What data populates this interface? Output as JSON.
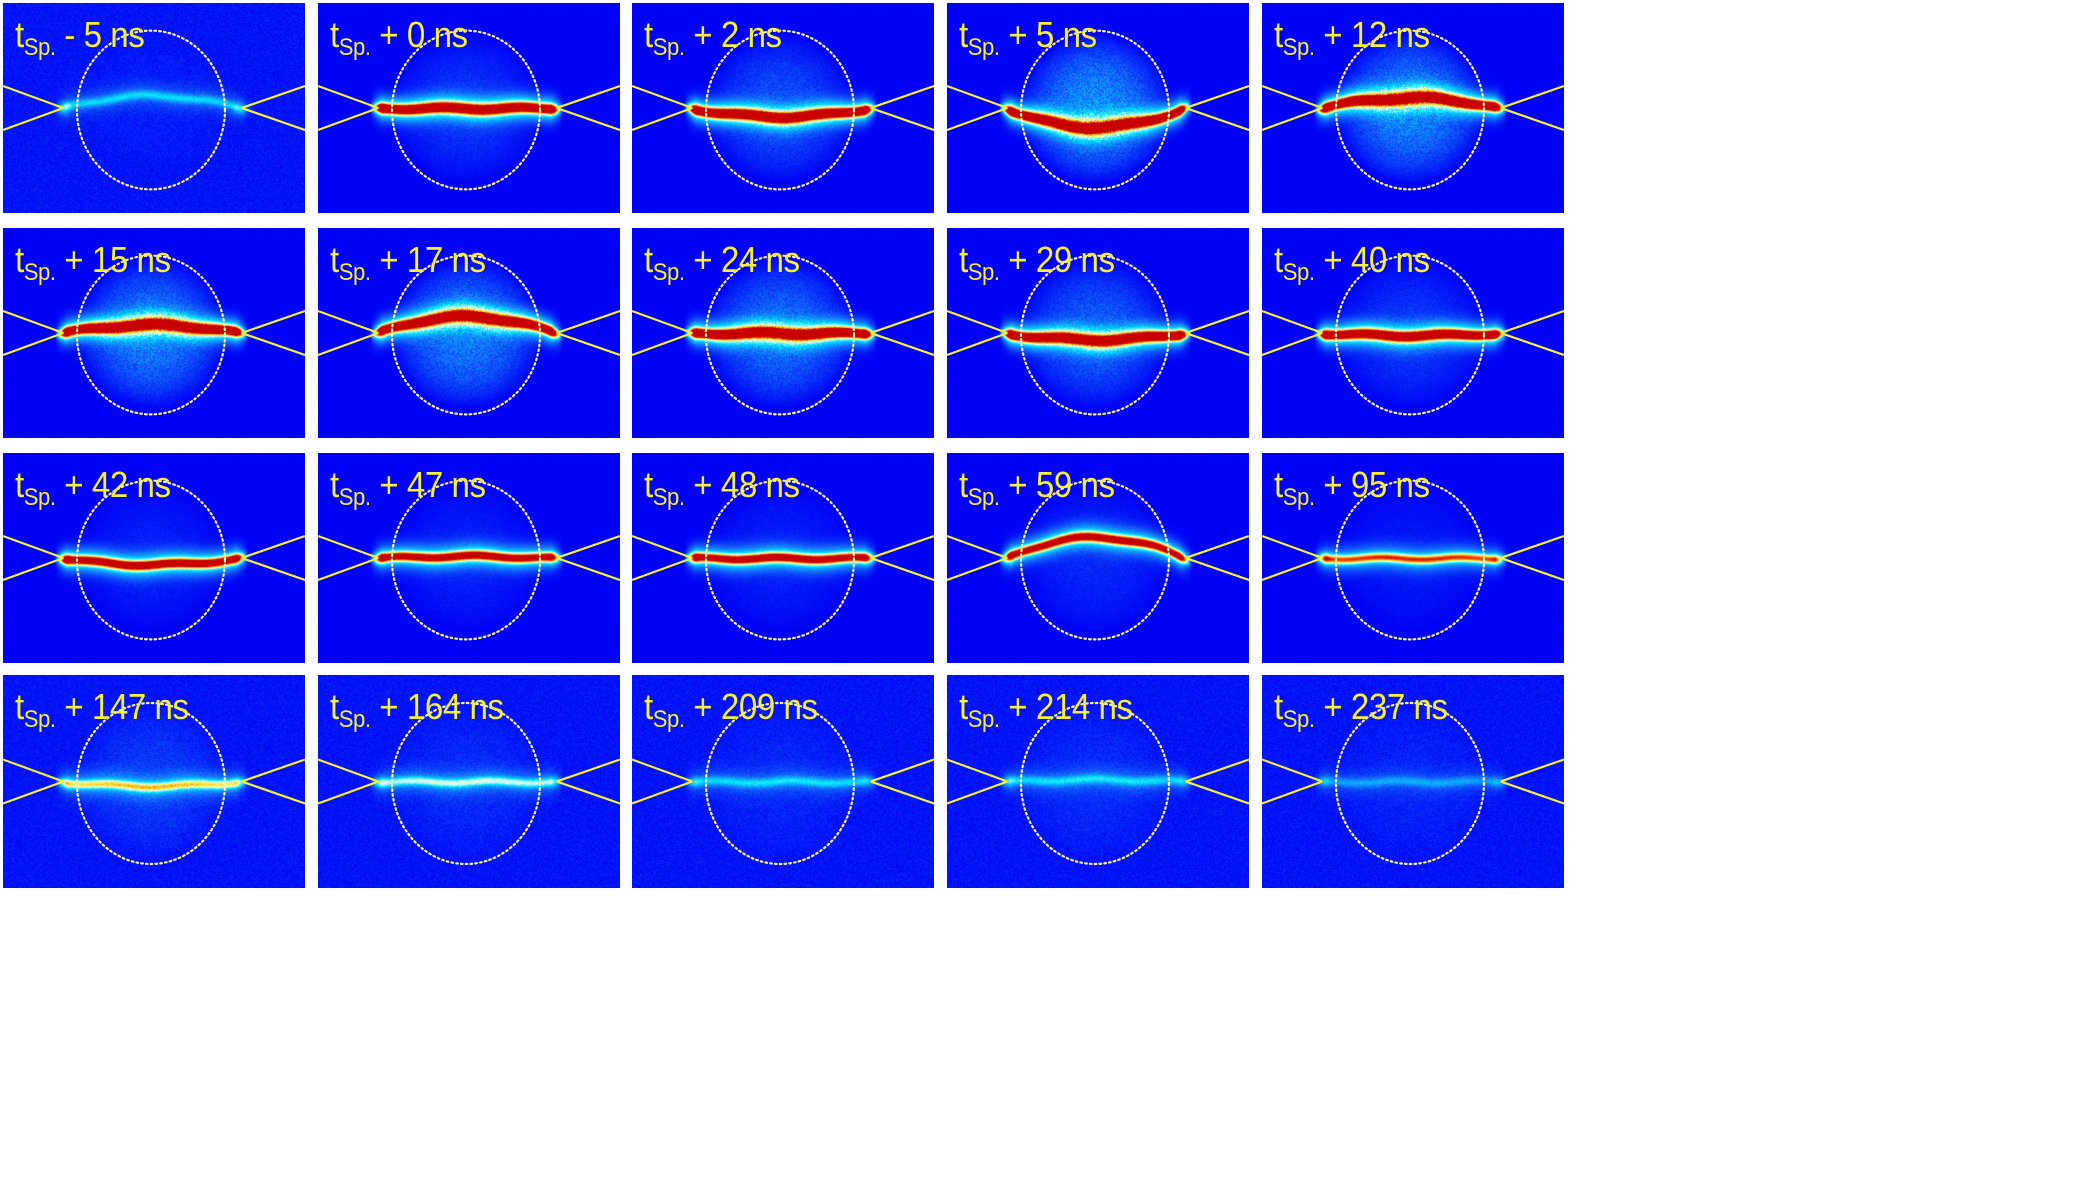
{
  "figure": {
    "background": "#ffffff",
    "panel_color": "#0000f5",
    "label_color": "#f5f03a",
    "overlay_color": "#f5f03a",
    "rows": 4,
    "cols": 5,
    "label_prefix": "t",
    "label_subscript": "Sp.",
    "panels": [
      {
        "label": "- 5 ns",
        "intensity": 0.25,
        "halo": 0.05,
        "curve": -0.12,
        "tips": 0.6
      },
      {
        "label": "+ 0 ns",
        "intensity": 1.0,
        "halo": 0.35,
        "curve": 0.0,
        "tips": 0.4
      },
      {
        "label": "+ 2 ns",
        "intensity": 1.0,
        "halo": 0.5,
        "curve": 0.08,
        "tips": 0.4
      },
      {
        "label": "+ 5 ns",
        "intensity": 1.0,
        "halo": 0.9,
        "curve": 0.18,
        "tips": 0.4
      },
      {
        "label": "+ 12 ns",
        "intensity": 1.0,
        "halo": 0.85,
        "curve": -0.1,
        "tips": 0.4
      },
      {
        "label": "+ 15 ns",
        "intensity": 1.0,
        "halo": 0.8,
        "curve": -0.08,
        "tips": 0.4
      },
      {
        "label": "+ 17 ns",
        "intensity": 1.0,
        "halo": 0.8,
        "curve": -0.16,
        "tips": 0.4
      },
      {
        "label": "+ 24 ns",
        "intensity": 1.0,
        "halo": 0.7,
        "curve": 0.0,
        "tips": 0.4
      },
      {
        "label": "+ 29 ns",
        "intensity": 1.0,
        "halo": 0.6,
        "curve": 0.06,
        "tips": 0.4
      },
      {
        "label": "+ 40 ns",
        "intensity": 0.95,
        "halo": 0.35,
        "curve": 0.02,
        "tips": 0.4
      },
      {
        "label": "+ 42 ns",
        "intensity": 0.85,
        "halo": 0.2,
        "curve": 0.06,
        "tips": 0.5
      },
      {
        "label": "+ 47 ns",
        "intensity": 0.8,
        "halo": 0.2,
        "curve": -0.02,
        "tips": 0.5
      },
      {
        "label": "+ 48 ns",
        "intensity": 0.8,
        "halo": 0.2,
        "curve": 0.0,
        "tips": 0.5
      },
      {
        "label": "+ 59 ns",
        "intensity": 0.8,
        "halo": 0.25,
        "curve": -0.2,
        "tips": 0.5
      },
      {
        "label": "+ 95 ns",
        "intensity": 0.6,
        "halo": 0.15,
        "curve": 0.0,
        "tips": 0.5
      },
      {
        "label": "+ 147 ns",
        "intensity": 0.45,
        "halo": 0.25,
        "curve": 0.04,
        "tips": 0.3
      },
      {
        "label": "+ 164 ns",
        "intensity": 0.35,
        "halo": 0.15,
        "curve": 0.0,
        "tips": 0.3
      },
      {
        "label": "+ 209 ns",
        "intensity": 0.25,
        "halo": 0.12,
        "curve": 0.0,
        "tips": 0.3
      },
      {
        "label": "+ 214 ns",
        "intensity": 0.25,
        "halo": 0.15,
        "curve": -0.02,
        "tips": 0.4
      },
      {
        "label": "+ 237 ns",
        "intensity": 0.18,
        "halo": 0.1,
        "curve": 0.0,
        "tips": 0.4
      }
    ]
  }
}
